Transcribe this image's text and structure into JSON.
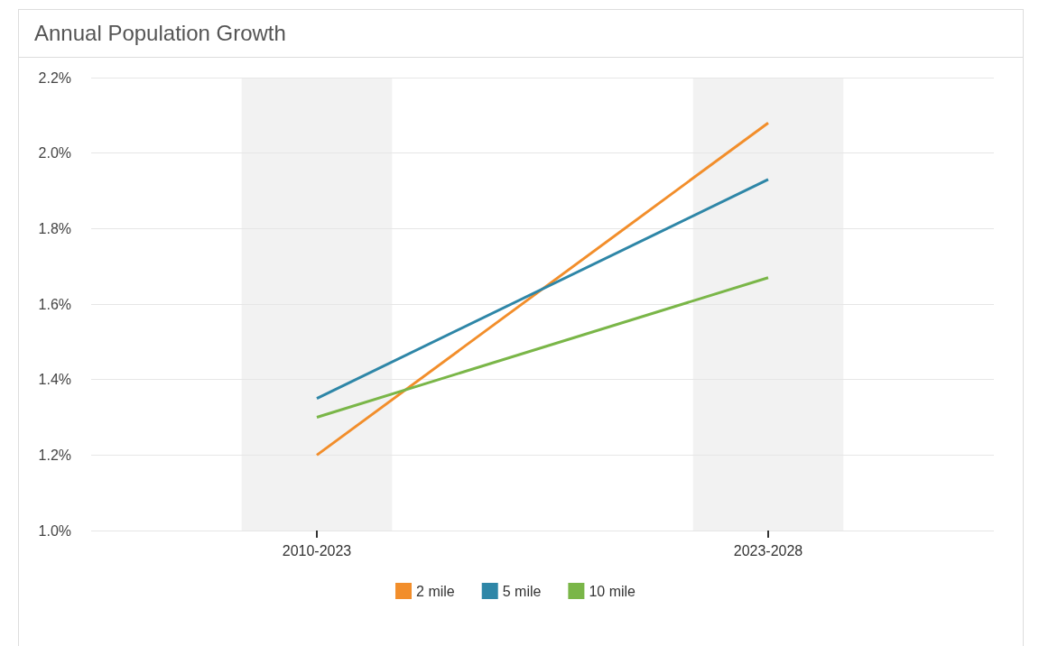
{
  "chart_data": {
    "type": "line",
    "title": "Annual Population Growth",
    "categories": [
      "2010-2023",
      "2023-2028"
    ],
    "series": [
      {
        "name": "2 mile",
        "color": "#f28e2b",
        "values": [
          1.2,
          2.08
        ]
      },
      {
        "name": "5 mile",
        "color": "#2e86a7",
        "values": [
          1.35,
          1.93
        ]
      },
      {
        "name": "10 mile",
        "color": "#7ab648",
        "values": [
          1.3,
          1.67
        ]
      }
    ],
    "ylim": [
      1.0,
      2.2
    ],
    "yticks": [
      {
        "value": 1.0,
        "label": "1.0%"
      },
      {
        "value": 1.2,
        "label": "1.2%"
      },
      {
        "value": 1.4,
        "label": "1.4%"
      },
      {
        "value": 1.6,
        "label": "1.6%"
      },
      {
        "value": 1.8,
        "label": "1.8%"
      },
      {
        "value": 2.0,
        "label": "2.0%"
      },
      {
        "value": 2.2,
        "label": "2.2%"
      }
    ],
    "bands": [
      {
        "axis": "x",
        "from": "2010-2023",
        "to": "2010-2023",
        "color": "#f2f2f2"
      },
      {
        "axis": "x",
        "from": "2023-2028",
        "to": "2023-2028",
        "color": "#f2f2f2"
      }
    ],
    "grid": "y",
    "legend": "bottom",
    "marker": "none",
    "line_style": "solid"
  }
}
